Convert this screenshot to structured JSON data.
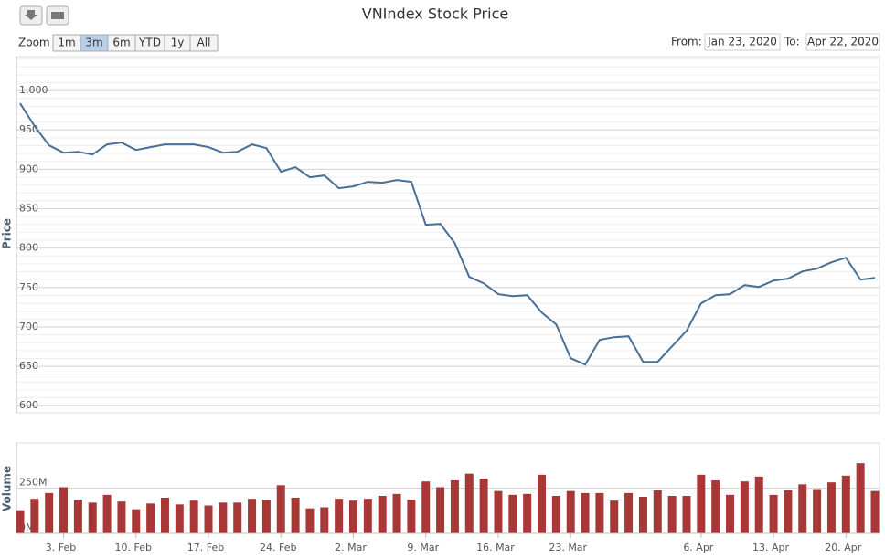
{
  "header": {
    "title": "VNIndex Stock Price"
  },
  "range_selector": {
    "label": "Zoom",
    "buttons": [
      "1m",
      "3m",
      "6m",
      "YTD",
      "1y",
      "All"
    ],
    "selected": 1
  },
  "date_range": {
    "from_label": "From:",
    "from": "Jan 23, 2020",
    "to_label": "To:",
    "to": "Apr 22, 2020"
  },
  "chart_data": [
    {
      "type": "line",
      "y_label": "Price",
      "color": "#4a6f96",
      "values": [
        983.8,
        954.8,
        930.4,
        921.1,
        922.2,
        918.8,
        931.6,
        933.9,
        924.6,
        928.1,
        931.6,
        931.6,
        931.6,
        928.1,
        921.1,
        922.2,
        931.6,
        926.9,
        896.8,
        902.6,
        889.9,
        892.2,
        876.0,
        878.3,
        884.1,
        882.9,
        886.4,
        884.1,
        829.6,
        830.7,
        806.4,
        763.5,
        755.4,
        741.5,
        739.1,
        740.3,
        718.3,
        703.2,
        660.3,
        652.2,
        683.5,
        687.0,
        688.1,
        655.7,
        655.7,
        675.4,
        695.1,
        729.9,
        740.3,
        741.5,
        753.0,
        750.7,
        758.8,
        761.2,
        770.4,
        773.9,
        782.0,
        787.8,
        760.0,
        762.3
      ],
      "ylim": [
        591,
        1043
      ],
      "yticks": [
        600,
        650,
        700,
        750,
        800,
        850,
        900,
        950,
        {
          "value": 1000,
          "label": "1,000"
        }
      ],
      "minor_grid_step": 10,
      "grid": true
    },
    {
      "type": "bar",
      "y_label": "Volume",
      "color": "#a83838",
      "categories": [
        null,
        null,
        null,
        "3. Feb",
        null,
        null,
        null,
        null,
        "10. Feb",
        null,
        null,
        null,
        null,
        "17. Feb",
        null,
        null,
        null,
        null,
        "24. Feb",
        null,
        null,
        null,
        null,
        "2. Mar",
        null,
        null,
        null,
        null,
        "9. Mar",
        null,
        null,
        null,
        null,
        "16. Mar",
        null,
        null,
        null,
        null,
        "23. Mar",
        null,
        null,
        null,
        null,
        null,
        null,
        null,
        null,
        "6. Apr",
        null,
        null,
        null,
        null,
        "13. Apr",
        null,
        null,
        null,
        null,
        "20. Apr",
        null,
        null
      ],
      "values": [
        128000000,
        191000000,
        223000000,
        255000000,
        186000000,
        170000000,
        213000000,
        176000000,
        133000000,
        165000000,
        197000000,
        160000000,
        181000000,
        154000000,
        170000000,
        170000000,
        191000000,
        186000000,
        266000000,
        197000000,
        138000000,
        144000000,
        191000000,
        181000000,
        191000000,
        207000000,
        218000000,
        186000000,
        287000000,
        255000000,
        293000000,
        330000000,
        303000000,
        234000000,
        213000000,
        218000000,
        324000000,
        207000000,
        234000000,
        223000000,
        223000000,
        181000000,
        223000000,
        202000000,
        239000000,
        207000000,
        207000000,
        324000000,
        293000000,
        213000000,
        287000000,
        314000000,
        213000000,
        239000000,
        271000000,
        245000000,
        282000000,
        319000000,
        388000000,
        234000000
      ],
      "ylim": [
        0,
        500000000
      ],
      "yticks": [
        {
          "value": 0,
          "label": "0M"
        },
        {
          "value": 250000000,
          "label": "250M"
        }
      ],
      "grid": true
    }
  ]
}
